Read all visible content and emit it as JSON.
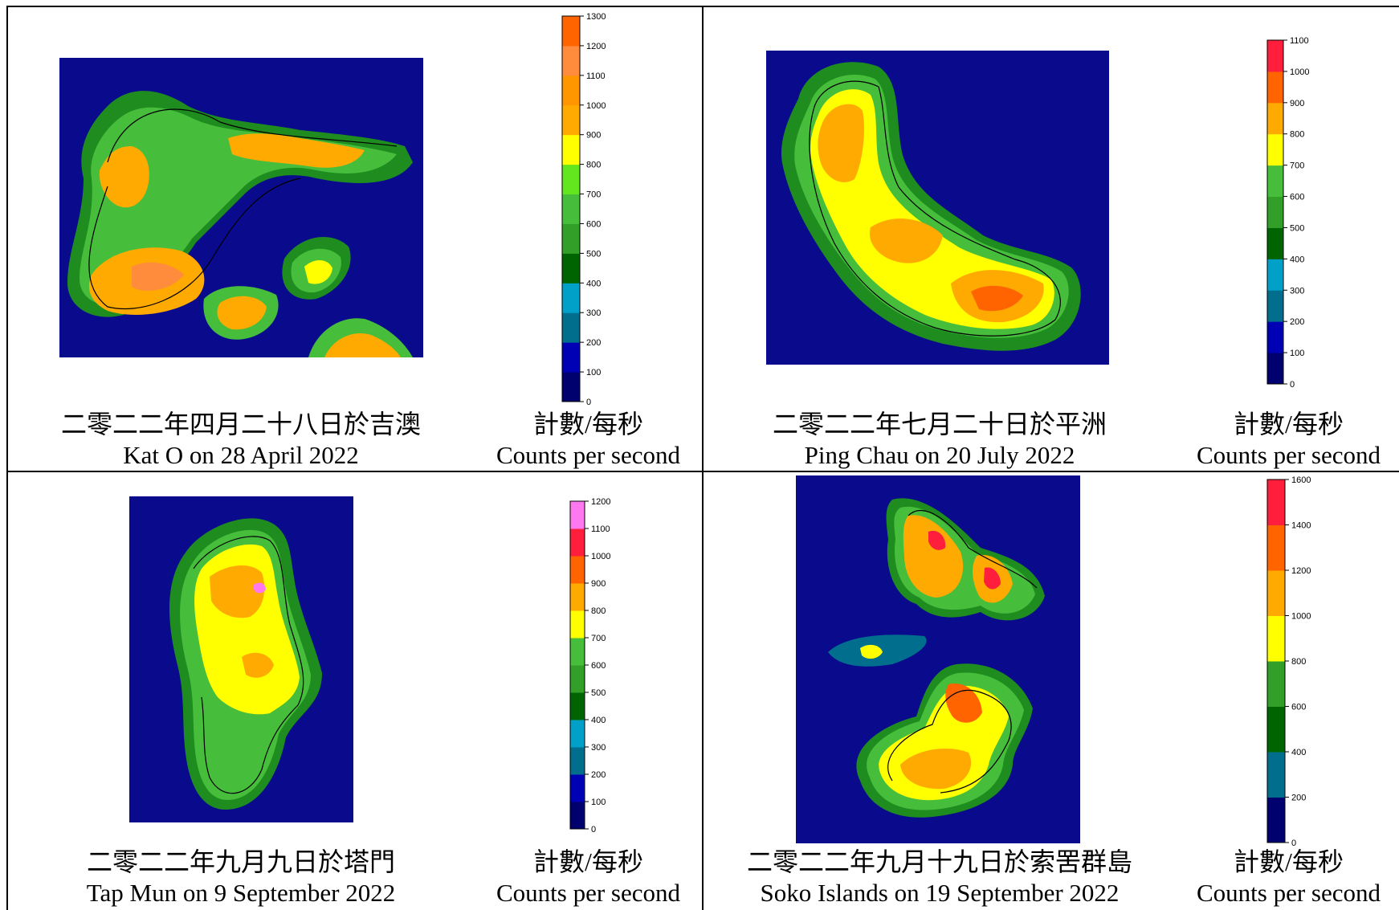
{
  "panels": [
    {
      "caption_zh": "二零二二年四月二十八日於吉澳",
      "caption_en": "Kat O on 28 April 2022",
      "legend_zh": "計數/每秒",
      "legend_en": "Counts per second",
      "legend": {
        "ticks": [
          "0",
          "100",
          "200",
          "300",
          "400",
          "500",
          "600",
          "700",
          "800",
          "900",
          "1000",
          "1100",
          "1200",
          "1300"
        ],
        "colors": [
          "#00006e",
          "#0000b4",
          "#006e8c",
          "#00a0c8",
          "#006400",
          "#32a028",
          "#46be3c",
          "#64e61e",
          "#ffff00",
          "#ffaa00",
          "#ff9600",
          "#ff8c3c",
          "#ff6400"
        ]
      }
    },
    {
      "caption_zh": "二零二二年七月二十日於平洲",
      "caption_en": "Ping Chau on 20 July 2022",
      "legend_zh": "計數/每秒",
      "legend_en": "Counts per second",
      "legend": {
        "ticks": [
          "0",
          "100",
          "200",
          "300",
          "400",
          "500",
          "600",
          "700",
          "800",
          "900",
          "1000",
          "1100"
        ],
        "colors": [
          "#00006e",
          "#0000b4",
          "#006e8c",
          "#00a0c8",
          "#006400",
          "#32a028",
          "#46be3c",
          "#ffff00",
          "#ffaa00",
          "#ff6400",
          "#ff1e3c"
        ]
      }
    },
    {
      "caption_zh": "二零二二年九月九日於塔門",
      "caption_en": "Tap Mun on 9 September 2022",
      "legend_zh": "計數/每秒",
      "legend_en": "Counts per second",
      "legend": {
        "ticks": [
          "0",
          "100",
          "200",
          "300",
          "400",
          "500",
          "600",
          "700",
          "800",
          "900",
          "1000",
          "1100",
          "1200"
        ],
        "colors": [
          "#00006e",
          "#0000b4",
          "#006e8c",
          "#00a0c8",
          "#006400",
          "#32a028",
          "#46be3c",
          "#ffff00",
          "#ffaa00",
          "#ff6400",
          "#ff1e3c",
          "#ff78f0"
        ]
      }
    },
    {
      "caption_zh": "二零二二年九月十九日於索罟群島",
      "caption_en": "Soko Islands on 19 September 2022",
      "legend_zh": "計數/每秒",
      "legend_en": "Counts per second",
      "legend": {
        "ticks": [
          "0",
          "200",
          "400",
          "600",
          "800",
          "1000",
          "1200",
          "1400",
          "1600"
        ],
        "colors": [
          "#00006e",
          "#006e8c",
          "#006400",
          "#32a028",
          "#ffff00",
          "#ffaa00",
          "#ff6400",
          "#ff1e3c"
        ]
      }
    }
  ]
}
